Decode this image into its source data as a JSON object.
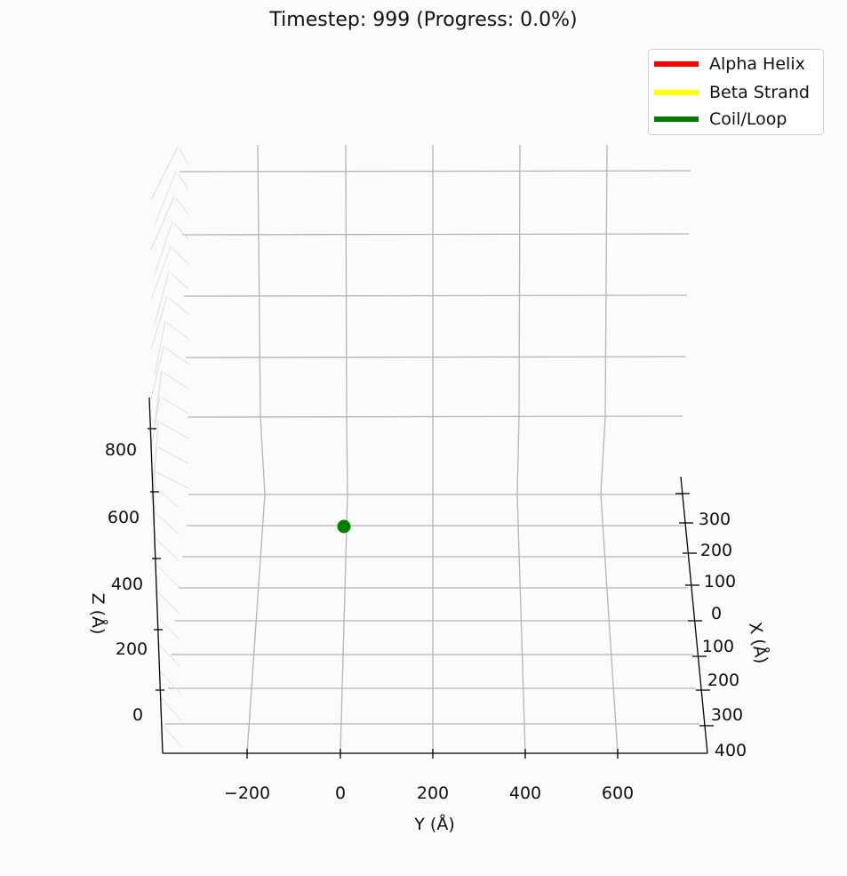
{
  "chart_data": {
    "type": "scatter",
    "title": "Timestep: 999 (Progress: 0.0%)",
    "xlabel": "X (Å)",
    "ylabel": "Y (Å)",
    "zlabel": "Z (Å)",
    "x_ticks": [
      "300",
      "200",
      "100",
      "0",
      "100",
      "200",
      "300",
      "400"
    ],
    "y_ticks": [
      "−200",
      "0",
      "200",
      "400",
      "600"
    ],
    "z_ticks": [
      "0",
      "200",
      "400",
      "600",
      "800"
    ],
    "legend_position": "top-right",
    "grid": true,
    "legend": [
      {
        "name": "Alpha Helix",
        "color": "#ff0000"
      },
      {
        "name": "Beta Strand",
        "color": "#ffff00"
      },
      {
        "name": "Coil/Loop",
        "color": "#008000"
      }
    ],
    "points": [
      {
        "x": 0,
        "y": 0,
        "z": 600,
        "type": "Coil/Loop",
        "color": "#008000"
      }
    ]
  }
}
